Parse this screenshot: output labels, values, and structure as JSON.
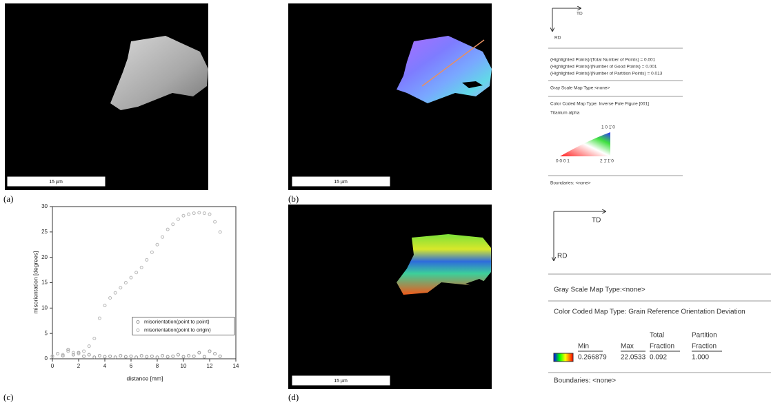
{
  "panels": [
    {
      "label": "(a)",
      "scale_bar": "15 µm"
    },
    {
      "label": "(b)",
      "scale_bar": "15 µm",
      "legend": {
        "td": "TD",
        "rd": "RD",
        "stats": [
          "(Highlighted Points)/(Total Number of Points) =  0.001",
          "(Highlighted Points)/(Number of Good Points) =  0.001",
          "(Highlighted Points)/(Number of Partition Points) =  0.013"
        ],
        "gray_map": "Gray Scale Map Type:<none>",
        "color_map": "Color Coded Map Type: Inverse Pole Figure [001]",
        "phase": "Titanium alpha",
        "corners": [
          "0 0 0 1",
          "2 1̄ 1̄ 0",
          "1 0 1̄ 0"
        ],
        "boundaries": "Boundaries: <none>"
      }
    },
    {
      "label": "(c)"
    },
    {
      "label": "(d)",
      "scale_bar": "15 µm",
      "legend": {
        "td": "TD",
        "rd": "RD",
        "gray_map": "Gray Scale Map Type:<none>",
        "color_map": "Color Coded Map Type: Grain Reference Orientation Deviation",
        "table": {
          "headers": [
            [
              "Min"
            ],
            [
              "Max"
            ],
            [
              "Total",
              "Fraction"
            ],
            [
              "Partition",
              "Fraction"
            ]
          ],
          "values": [
            "0.266879",
            "22.0533",
            "0.092",
            "1.000"
          ]
        },
        "boundaries": "Boundaries: <none>"
      }
    }
  ],
  "chart_data": {
    "type": "scatter",
    "x_label": "distance [mm]",
    "y_label": "misorientation [degrees]",
    "x": [
      0,
      0.4,
      0.8,
      1.2,
      1.6,
      2,
      2.4,
      2.8,
      3.2,
      3.6,
      4,
      4.4,
      4.8,
      5.2,
      5.6,
      6,
      6.4,
      6.8,
      7.2,
      7.6,
      8,
      8.4,
      8.8,
      9.2,
      9.6,
      10,
      10.4,
      10.8,
      11.2,
      11.6,
      12,
      12.4,
      12.8
    ],
    "series": [
      {
        "name": "misorientation(point to point)",
        "color": "#9a9a9a",
        "values": [
          0.5,
          1,
          0.6,
          1.8,
          0.8,
          1.2,
          0.5,
          0.8,
          0.3,
          0.6,
          0.4,
          0.5,
          0.3,
          0.6,
          0.4,
          0.5,
          0.3,
          0.6,
          0.4,
          0.5,
          0.3,
          0.6,
          0.4,
          0.5,
          0.8,
          0.4,
          0.6,
          0.5,
          1.2,
          0.4,
          1.5,
          1,
          0.5
        ]
      },
      {
        "name": "misorientation(point to origin)",
        "color": "#b8b8b8",
        "values": [
          0.5,
          1,
          0.8,
          1.5,
          1.2,
          1,
          1.5,
          2.5,
          4,
          8,
          10.5,
          12,
          13,
          14,
          15,
          16,
          17,
          18,
          19.5,
          21,
          22.5,
          24,
          25.5,
          26.5,
          27.5,
          28.2,
          28.5,
          28.7,
          28.8,
          28.7,
          28.5,
          27,
          25
        ]
      }
    ],
    "xlim": [
      0,
      14
    ],
    "xticks": [
      0,
      2,
      4,
      6,
      8,
      10,
      12,
      14
    ],
    "ylim": [
      0,
      30
    ],
    "yticks": [
      0,
      5,
      10,
      15,
      20,
      25,
      30
    ],
    "legend": "center right"
  }
}
